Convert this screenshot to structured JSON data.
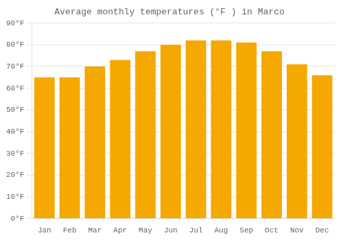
{
  "chart_data": {
    "type": "bar",
    "title": "Average monthly temperatures (°F ) in Marco",
    "categories": [
      "Jan",
      "Feb",
      "Mar",
      "Apr",
      "May",
      "Jun",
      "Jul",
      "Aug",
      "Sep",
      "Oct",
      "Nov",
      "Dec"
    ],
    "values": [
      65,
      65,
      70,
      73,
      77,
      80,
      82,
      82,
      81,
      77,
      71,
      66
    ],
    "color": "#F5A800",
    "ylim": [
      0,
      90
    ],
    "yticks": [
      {
        "value": 0,
        "label": "0°F"
      },
      {
        "value": 10,
        "label": "10°F"
      },
      {
        "value": 20,
        "label": "20°F"
      },
      {
        "value": 30,
        "label": "30°F"
      },
      {
        "value": 40,
        "label": "40°F"
      },
      {
        "value": 50,
        "label": "50°F"
      },
      {
        "value": 60,
        "label": "60°F"
      },
      {
        "value": 70,
        "label": "70°F"
      },
      {
        "value": 80,
        "label": "80°F"
      },
      {
        "value": 90,
        "label": "90°F"
      }
    ],
    "grid": true
  }
}
